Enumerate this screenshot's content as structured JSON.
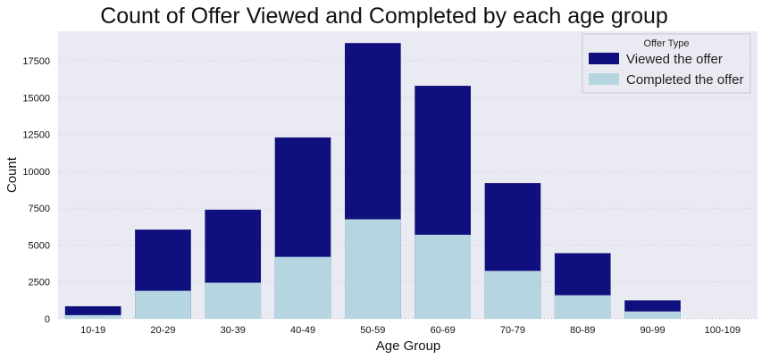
{
  "chart_data": {
    "type": "bar",
    "title": "Count of Offer Viewed and Completed by each age group",
    "xlabel": "Age Group",
    "ylabel": "Count",
    "ylim": [
      0,
      19500
    ],
    "yticks": [
      0,
      2500,
      5000,
      7500,
      10000,
      12500,
      15000,
      17500
    ],
    "grid": true,
    "legend_position": "top-right",
    "legend_title": "Offer Type",
    "categories": [
      "10-19",
      "20-29",
      "30-39",
      "40-49",
      "50-59",
      "60-69",
      "70-79",
      "80-89",
      "90-99",
      "100-109"
    ],
    "series": [
      {
        "name": "Viewed the offer",
        "color": "#0f0f7d",
        "values": [
          850,
          6050,
          7400,
          12300,
          18700,
          15800,
          9200,
          4450,
          1250,
          0
        ]
      },
      {
        "name": "Completed the offer",
        "color": "#b5d5e1",
        "values": [
          250,
          1900,
          2450,
          4200,
          6750,
          5700,
          3250,
          1600,
          500,
          0
        ]
      }
    ],
    "colors": {
      "plot_background": "#eaeaf2",
      "grid": "#c6c6cf"
    }
  }
}
